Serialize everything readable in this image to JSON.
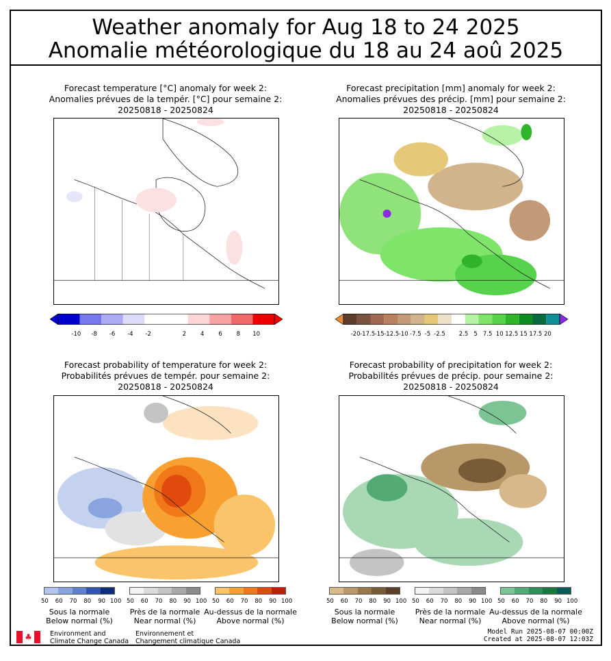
{
  "header": {
    "title_en": "Weather anomaly for Aug 18 to 24 2025",
    "title_fr": "Anomalie météorologique du 18 au 24 aoû 2025"
  },
  "panels": [
    {
      "line1": "Forecast temperature [°C] anomaly for week 2:",
      "line2": "Anomalies prévues de la tempér. [°C] pour semaine 2:",
      "line3": "20250818 - 20250824",
      "colorbar": {
        "ticks": [
          "-10",
          "-8",
          "-6",
          "-4",
          "-2",
          "2",
          "4",
          "6",
          "8",
          "10"
        ],
        "colors": [
          "#0000cc",
          "#7777ee",
          "#aaaaf5",
          "#dcdcfa",
          "#ffffff",
          "#ffffff",
          "#fcd6d6",
          "#f7a3a3",
          "#f06a6a",
          "#ee0000"
        ]
      }
    },
    {
      "line1": "Forecast precipitation [mm] anomaly for week 2:",
      "line2": "Anomalies prévues des précip. [mm] pour semaine 2:",
      "line3": "20250818 - 20250824",
      "colorbar": {
        "ticks": [
          "-20",
          "-17.5",
          "-15",
          "-12.5",
          "-10",
          "-7.5",
          "-5",
          "-2.5",
          "2.5",
          "5",
          "7.5",
          "10",
          "12.5",
          "15",
          "17.5",
          "20"
        ],
        "colors": [
          "#5e3c2c",
          "#7b5340",
          "#a06a52",
          "#b8805c",
          "#c29a78",
          "#d2b48c",
          "#e5c878",
          "#ece0c8",
          "#ffffff",
          "#b6f3a6",
          "#7fe56a",
          "#56d24c",
          "#2fb42c",
          "#0e8e22",
          "#0a6a40",
          "#128e96"
        ]
      }
    },
    {
      "line1": "Forecast probability of temperature for week 2:",
      "line2": "Probabilités prévues de tempér. pour semaine 2:",
      "line3": "20250818 - 20250824"
    },
    {
      "line1": "Forecast probability of precipitation for week 2:",
      "line2": "Probabilités prévues de précip. pour semaine 2:",
      "line3": "20250818 - 20250824"
    }
  ],
  "prob_legends": {
    "tick_labels": [
      "50",
      "60",
      "70",
      "80",
      "90",
      "100"
    ],
    "temperature": [
      {
        "fr": "Sous la normale",
        "en": "Below normal (%)",
        "colors": [
          "#b4c4ec",
          "#8aa4e0",
          "#5f80cc",
          "#3054b0",
          "#0e2c7a"
        ]
      },
      {
        "fr": "Près de la normale",
        "en": "Near normal (%)",
        "colors": [
          "#f4f4f4",
          "#dcdcdc",
          "#c4c4c4",
          "#a8a8a8",
          "#8a8a8a"
        ]
      },
      {
        "fr": "Au-dessus de la normale",
        "en": "Above normal (%)",
        "colors": [
          "#fcc46a",
          "#f8a030",
          "#f07818",
          "#e04a0c",
          "#c41c04"
        ]
      }
    ],
    "precipitation": [
      {
        "fr": "Sous la normale",
        "en": "Below normal (%)",
        "colors": [
          "#d8b88a",
          "#b89868",
          "#98784c",
          "#785c38",
          "#5a4028"
        ]
      },
      {
        "fr": "Près de la normale",
        "en": "Near normal (%)",
        "colors": [
          "#f4f4f4",
          "#dcdcdc",
          "#c4c4c4",
          "#a8a8a8",
          "#8a8a8a"
        ]
      },
      {
        "fr": "Au-dessus de la normale",
        "en": "Above normal (%)",
        "colors": [
          "#7cc494",
          "#54aa74",
          "#2e9056",
          "#18783e",
          "#0a5a5a"
        ]
      }
    ]
  },
  "footer": {
    "org_en_line1": "Environment and",
    "org_en_line2": "Climate Change Canada",
    "org_fr_line1": "Environnement et",
    "org_fr_line2": "Changement climatique Canada",
    "model_run": "Model Run 2025-08-07 00:00Z",
    "created_at": "Created at 2025-08-07 12:03Z"
  },
  "colors": {
    "flag_red": "#e8112d"
  }
}
